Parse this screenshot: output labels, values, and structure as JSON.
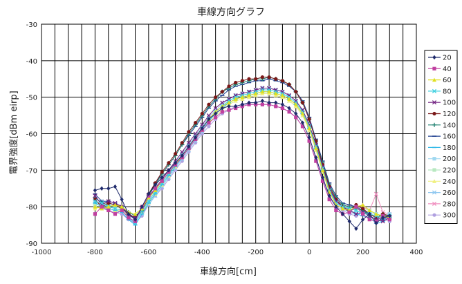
{
  "chart_data": {
    "type": "line",
    "title": "車線方向グラフ",
    "xlabel": "車線方向[cm]",
    "ylabel": "電界強度[dBm eirp]",
    "xlim": [
      -1000,
      400
    ],
    "ylim": [
      -90,
      -30
    ],
    "xticks": [
      -1000,
      -800,
      -600,
      -400,
      -200,
      0,
      200,
      400
    ],
    "yticks": [
      -90,
      -80,
      -70,
      -60,
      -50,
      -40,
      -30
    ],
    "x_minor_step": 50,
    "grid": true,
    "legend_position": "right",
    "x": [
      -800,
      -775,
      -750,
      -725,
      -700,
      -675,
      -650,
      -625,
      -600,
      -575,
      -550,
      -525,
      -500,
      -475,
      -450,
      -425,
      -400,
      -375,
      -350,
      -325,
      -300,
      -275,
      -250,
      -225,
      -200,
      -175,
      -150,
      -125,
      -100,
      -75,
      -50,
      -25,
      0,
      25,
      50,
      75,
      100,
      125,
      150,
      175,
      200,
      225,
      250,
      275,
      300
    ],
    "series": [
      {
        "name": "20",
        "color": "#1f2a6b",
        "marker": "diamond",
        "values": [
          -75.5,
          -75.0,
          -75.0,
          -74.5,
          -78.0,
          -82.0,
          -83.5,
          -80.0,
          -76.5,
          -74.0,
          -72.0,
          -70.0,
          -68.0,
          -66.0,
          -63.5,
          -61.0,
          -58.5,
          -56.0,
          -54.5,
          -53.0,
          -52.5,
          -52.5,
          -52.0,
          -51.5,
          -51.5,
          -51.0,
          -51.5,
          -51.5,
          -52.0,
          -53.0,
          -54.5,
          -57.0,
          -61.0,
          -66.5,
          -72.0,
          -77.0,
          -80.0,
          -82.0,
          -84.0,
          -86.0,
          -83.5,
          -82.0,
          -84.5,
          -83.0,
          -82.5
        ]
      },
      {
        "name": "40",
        "color": "#c040a0",
        "marker": "square",
        "values": [
          -82.0,
          -80.0,
          -81.0,
          -82.0,
          -81.0,
          -83.0,
          -84.0,
          -80.0,
          -77.0,
          -75.0,
          -73.0,
          -70.5,
          -68.5,
          -66.5,
          -64.0,
          -61.5,
          -59.0,
          -57.0,
          -55.5,
          -54.0,
          -53.5,
          -53.0,
          -52.5,
          -52.0,
          -52.0,
          -52.0,
          -52.0,
          -52.5,
          -53.0,
          -54.0,
          -55.5,
          -58.0,
          -62.0,
          -67.5,
          -73.0,
          -78.0,
          -81.0,
          -82.0,
          -81.5,
          -80.0,
          -82.0,
          -83.5,
          -84.0,
          -82.5,
          -83.5
        ]
      },
      {
        "name": "60",
        "color": "#e0e020",
        "marker": "triangle",
        "values": [
          -80.0,
          -80.5,
          -80.0,
          -79.5,
          -80.0,
          -81.5,
          -82.0,
          -80.5,
          -77.5,
          -75.5,
          -73.0,
          -70.5,
          -68.5,
          -66.0,
          -63.5,
          -61.0,
          -58.5,
          -56.0,
          -54.0,
          -52.5,
          -51.5,
          -50.5,
          -50.0,
          -49.5,
          -49.0,
          -48.5,
          -48.5,
          -49.0,
          -49.5,
          -50.5,
          -52.0,
          -54.5,
          -58.5,
          -64.0,
          -70.0,
          -76.0,
          -79.5,
          -80.5,
          -81.0,
          -80.0,
          -79.5,
          -81.0,
          -82.0,
          -82.5,
          -83.0
        ]
      },
      {
        "name": "80",
        "color": "#40d0e0",
        "marker": "x",
        "values": [
          -78.5,
          -79.0,
          -80.0,
          -80.5,
          -81.0,
          -83.0,
          -84.5,
          -81.0,
          -78.5,
          -76.0,
          -73.5,
          -71.0,
          -68.5,
          -66.0,
          -63.5,
          -61.0,
          -58.5,
          -56.0,
          -54.0,
          -52.5,
          -51.0,
          -50.0,
          -49.5,
          -49.0,
          -48.5,
          -48.0,
          -48.0,
          -48.5,
          -49.0,
          -50.0,
          -51.5,
          -54.0,
          -58.0,
          -63.5,
          -69.5,
          -75.5,
          -79.0,
          -80.0,
          -80.5,
          -81.0,
          -82.0,
          -82.0,
          -82.5,
          -83.0,
          -82.5
        ]
      },
      {
        "name": "100",
        "color": "#702080",
        "marker": "x",
        "values": [
          -77.0,
          -79.5,
          -78.5,
          -79.0,
          -80.0,
          -82.5,
          -83.0,
          -81.0,
          -77.5,
          -75.0,
          -72.5,
          -70.0,
          -67.5,
          -65.0,
          -62.5,
          -60.0,
          -57.5,
          -55.0,
          -53.0,
          -51.5,
          -50.5,
          -49.5,
          -49.0,
          -48.5,
          -48.0,
          -47.5,
          -47.5,
          -48.0,
          -48.5,
          -49.5,
          -51.0,
          -53.5,
          -57.5,
          -63.0,
          -69.0,
          -75.0,
          -78.5,
          -80.0,
          -81.0,
          -82.0,
          -81.5,
          -82.5,
          -83.5,
          -84.0,
          -83.0
        ]
      },
      {
        "name": "120",
        "color": "#7a1818",
        "marker": "circle",
        "values": [
          -78.0,
          -80.0,
          -79.0,
          -79.5,
          -80.5,
          -82.0,
          -83.0,
          -80.5,
          -76.5,
          -73.5,
          -70.5,
          -68.0,
          -65.5,
          -62.5,
          -59.5,
          -57.0,
          -54.5,
          -52.0,
          -50.0,
          -48.5,
          -47.0,
          -46.0,
          -45.5,
          -45.0,
          -45.0,
          -44.5,
          -44.5,
          -45.0,
          -45.5,
          -46.5,
          -48.5,
          -51.5,
          -56.0,
          -62.0,
          -68.5,
          -74.5,
          -78.0,
          -80.0,
          -81.5,
          -79.5,
          -80.5,
          -82.0,
          -83.0,
          -82.0,
          -82.5
        ]
      },
      {
        "name": "140",
        "color": "#208070",
        "marker": "plus",
        "values": [
          -77.5,
          -79.0,
          -79.0,
          -79.5,
          -80.0,
          -81.5,
          -82.5,
          -81.0,
          -77.0,
          -74.0,
          -71.0,
          -68.5,
          -66.0,
          -63.0,
          -60.0,
          -57.5,
          -55.0,
          -52.5,
          -50.5,
          -48.5,
          -47.5,
          -46.5,
          -46.0,
          -45.5,
          -45.0,
          -45.0,
          -44.5,
          -45.0,
          -45.5,
          -46.5,
          -48.5,
          -51.5,
          -56.0,
          -62.0,
          -68.0,
          -74.0,
          -77.5,
          -79.5,
          -80.0,
          -80.5,
          -81.0,
          -82.5,
          -83.5,
          -82.0,
          -83.0
        ]
      },
      {
        "name": "160",
        "color": "#204090",
        "marker": "dash",
        "values": [
          -76.5,
          -78.5,
          -78.5,
          -79.0,
          -80.0,
          -82.0,
          -83.0,
          -80.5,
          -76.5,
          -73.5,
          -71.0,
          -68.5,
          -66.0,
          -63.0,
          -60.5,
          -58.0,
          -55.5,
          -53.0,
          -51.0,
          -49.5,
          -48.0,
          -47.0,
          -46.5,
          -46.0,
          -45.5,
          -45.5,
          -45.0,
          -45.5,
          -46.0,
          -47.0,
          -48.5,
          -51.0,
          -55.5,
          -61.5,
          -67.5,
          -73.5,
          -77.0,
          -79.0,
          -79.5,
          -80.0,
          -81.0,
          -82.0,
          -83.0,
          -83.5,
          -82.5
        ]
      },
      {
        "name": "180",
        "color": "#30b8e8",
        "marker": "dash",
        "values": [
          -79.0,
          -80.0,
          -80.5,
          -81.0,
          -81.5,
          -83.5,
          -85.0,
          -82.0,
          -79.0,
          -76.5,
          -74.0,
          -71.5,
          -69.0,
          -66.5,
          -64.0,
          -61.5,
          -59.0,
          -56.5,
          -54.5,
          -53.0,
          -51.5,
          -50.5,
          -50.0,
          -49.5,
          -49.0,
          -48.5,
          -48.5,
          -49.0,
          -49.5,
          -50.5,
          -52.0,
          -54.5,
          -58.5,
          -64.0,
          -70.0,
          -75.5,
          -78.5,
          -80.0,
          -81.0,
          -82.0,
          -82.5,
          -83.0,
          -84.5,
          -84.0,
          -83.0
        ]
      },
      {
        "name": "200",
        "color": "#a0d8f0",
        "marker": "square",
        "values": [
          -78.0,
          -78.5,
          -79.0,
          -79.5,
          -80.5,
          -82.5,
          -83.5,
          -81.0,
          -78.0,
          -75.5,
          -73.0,
          -70.5,
          -68.0,
          -65.5,
          -63.0,
          -60.5,
          -58.0,
          -55.5,
          -53.5,
          -52.0,
          -50.5,
          -49.5,
          -49.0,
          -48.5,
          -48.0,
          -47.5,
          -47.5,
          -48.0,
          -48.5,
          -49.5,
          -51.0,
          -53.5,
          -57.5,
          -63.0,
          -69.0,
          -75.0,
          -78.5,
          -80.0,
          -81.0,
          -81.5,
          -81.0,
          -81.5,
          -82.0,
          -82.5,
          -82.0
        ]
      },
      {
        "name": "220",
        "color": "#b8e8c0",
        "marker": "square",
        "values": [
          -79.5,
          -79.0,
          -79.5,
          -80.0,
          -80.5,
          -82.0,
          -83.0,
          -81.5,
          -78.5,
          -76.0,
          -73.5,
          -71.0,
          -68.5,
          -66.0,
          -63.5,
          -61.0,
          -58.5,
          -56.0,
          -54.0,
          -52.5,
          -51.0,
          -50.0,
          -49.5,
          -49.0,
          -48.5,
          -48.0,
          -48.0,
          -48.5,
          -49.0,
          -50.0,
          -51.5,
          -54.0,
          -58.0,
          -63.5,
          -69.5,
          -75.0,
          -78.5,
          -79.5,
          -80.5,
          -81.0,
          -80.5,
          -81.0,
          -82.0,
          -82.5,
          -82.5
        ]
      },
      {
        "name": "240",
        "color": "#f0f080",
        "marker": "triangle",
        "values": [
          -80.5,
          -80.0,
          -80.5,
          -81.0,
          -81.0,
          -82.5,
          -83.0,
          -81.5,
          -79.0,
          -76.5,
          -74.0,
          -71.5,
          -69.0,
          -66.5,
          -64.0,
          -61.5,
          -59.0,
          -57.0,
          -55.0,
          -53.5,
          -52.0,
          -51.0,
          -50.5,
          -50.0,
          -49.5,
          -49.0,
          -49.0,
          -49.5,
          -50.0,
          -51.0,
          -52.5,
          -55.0,
          -59.0,
          -64.5,
          -70.5,
          -76.0,
          -79.0,
          -80.0,
          -81.0,
          -81.5,
          -81.0,
          -82.0,
          -82.5,
          -83.0,
          -82.5
        ]
      },
      {
        "name": "260",
        "color": "#90c8f0",
        "marker": "x",
        "values": [
          -79.0,
          -79.5,
          -80.0,
          -80.5,
          -81.0,
          -83.0,
          -84.0,
          -82.0,
          -79.5,
          -77.0,
          -74.5,
          -72.0,
          -69.5,
          -67.0,
          -64.5,
          -62.0,
          -59.5,
          -57.0,
          -55.0,
          -53.5,
          -52.0,
          -51.0,
          -50.5,
          -50.0,
          -49.5,
          -49.0,
          -49.0,
          -49.5,
          -50.0,
          -51.0,
          -52.5,
          -55.0,
          -59.0,
          -64.5,
          -70.5,
          -76.0,
          -79.0,
          -80.5,
          -81.5,
          -82.0,
          -81.5,
          -82.0,
          -83.0,
          -83.5,
          -83.0
        ]
      },
      {
        "name": "280",
        "color": "#f090c0",
        "marker": "x",
        "values": [
          -78.0,
          -78.5,
          -79.0,
          -79.5,
          -80.0,
          -82.0,
          -83.0,
          -81.0,
          -78.0,
          -75.5,
          -73.0,
          -70.5,
          -68.0,
          -65.5,
          -63.0,
          -60.5,
          -58.0,
          -55.5,
          -53.5,
          -52.0,
          -50.5,
          -49.5,
          -49.0,
          -48.5,
          -48.0,
          -47.5,
          -47.5,
          -48.0,
          -48.5,
          -49.5,
          -51.0,
          -53.5,
          -57.5,
          -63.0,
          -69.0,
          -75.0,
          -78.0,
          -79.5,
          -80.0,
          -80.5,
          -80.0,
          -81.0,
          -76.5,
          -81.5,
          -82.0
        ]
      },
      {
        "name": "300",
        "color": "#b0a0e0",
        "marker": "circle",
        "values": [
          -80.0,
          -80.5,
          -81.0,
          -81.5,
          -82.0,
          -83.5,
          -84.5,
          -82.5,
          -79.5,
          -77.0,
          -75.0,
          -72.5,
          -70.0,
          -67.5,
          -65.0,
          -62.5,
          -60.0,
          -58.0,
          -56.0,
          -54.5,
          -53.5,
          -52.5,
          -52.0,
          -52.0,
          -52.0,
          -52.0,
          -52.0,
          -52.5,
          -53.0,
          -54.0,
          -55.5,
          -58.0,
          -62.0,
          -67.0,
          -72.5,
          -77.5,
          -80.0,
          -81.0,
          -82.0,
          -82.5,
          -81.5,
          -82.0,
          -83.0,
          -83.5,
          -84.0
        ]
      }
    ]
  }
}
